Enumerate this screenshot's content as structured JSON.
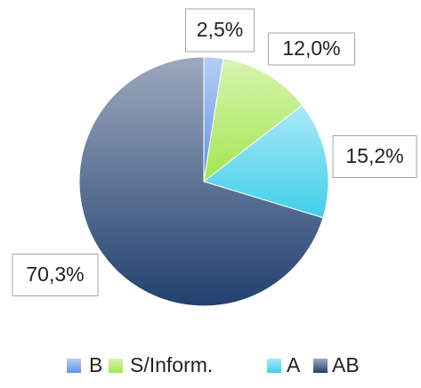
{
  "chart_data": {
    "type": "pie",
    "categories": [
      "B",
      "S/Inform.",
      "A",
      "AB"
    ],
    "values": [
      2.5,
      12.0,
      15.2,
      70.3
    ],
    "value_labels": [
      "2,5%",
      "12,0%",
      "15,2%",
      "70,3%"
    ],
    "colors": [
      "#5f93e3",
      "#a4e650",
      "#3fcfea",
      "#22406f"
    ],
    "legend": "bottom"
  }
}
